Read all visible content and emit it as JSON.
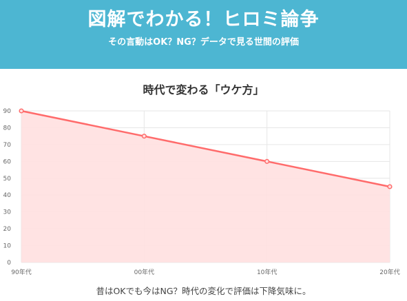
{
  "header": {
    "title": "図解でわかる！ヒロミ論争",
    "subtitle": "その言動はOK？NG？データで見る世間の評価"
  },
  "caption": "昔はOKでも今はNG？時代の変化で評価は下降気味に。",
  "colors": {
    "header_bg": "#4db6d2",
    "line": "#ff6b6b",
    "fill": "#ffe0e0"
  },
  "chart_data": {
    "type": "area",
    "title": "時代で変わる「ウケ方」",
    "categories": [
      "90年代",
      "00年代",
      "10年代",
      "20年代"
    ],
    "values": [
      90,
      75,
      60,
      45
    ],
    "ylim": [
      0,
      90
    ],
    "yticks": [
      0,
      10,
      20,
      30,
      40,
      50,
      60,
      70,
      80,
      90
    ],
    "grid": true,
    "legend": "none"
  }
}
